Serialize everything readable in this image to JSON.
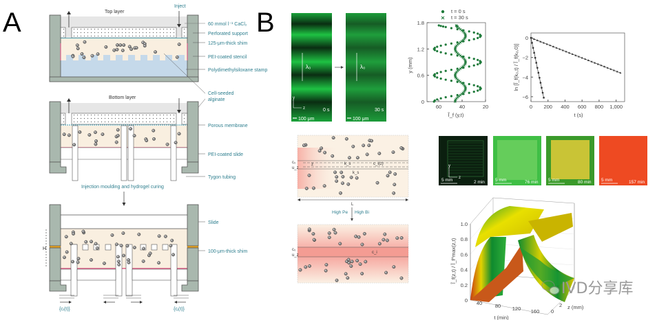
{
  "panel_a": {
    "letter": "A",
    "top_layer": "Top layer",
    "inject": "Inject",
    "bottom_layer": "Bottom layer",
    "labels": {
      "cacl2": "60 mmol l⁻¹ CaCl₂",
      "perforated_support": "Perforated support",
      "shim_125": "125-μm-thick shim",
      "pei_stencil": "PEI-coated stencil",
      "pdms_stamp": "Polydimethylsiloxane stamp",
      "cell_seeded_1": "Cell-seeded",
      "cell_seeded_2": "alginate",
      "porous_membrane": "Porous membrane",
      "pei_slide": "PEI-coated slide",
      "tygon": "Tygon tubing",
      "step": "Injection moulding and hydrogel curing",
      "slide": "Slide",
      "shim_100": "100-μm-thick shim",
      "height": "H",
      "inlet_left": "{cᵢ(t)}",
      "inlet_right": "{cⱼ(t)}"
    },
    "colors": {
      "frame": "#a9b8ae",
      "alginate": "#f9efe0",
      "stamp": "#c5d9ea",
      "shim": "#b0574a",
      "pei": "#d9467a"
    }
  },
  "panel_b": {
    "letter": "B",
    "images": [
      {
        "time": "0 s",
        "scale": "100 μm",
        "lambda": "λ₀",
        "axis_y": "y",
        "axis_z": "z"
      },
      {
        "time": "30 s",
        "scale": "100 μm",
        "lambda": "λ₀"
      }
    ],
    "schematic": {
      "arrow_label": "L",
      "high_pe": "High Pe",
      "high_bi": "High Bi",
      "c0": "c₀",
      "uz": "u_z",
      "z": "z",
      "ks": "k_s",
      "ks2": "k_s",
      "ci": "c_i(z)",
      "ci2": "c_i"
    },
    "timelapse": [
      {
        "scale": "5 mm",
        "time": "2 min",
        "color": "#0d2a14",
        "axis_y": "y",
        "axis_z": "z"
      },
      {
        "scale": "5 mm",
        "time": "76 min",
        "color": "#5fcf52"
      },
      {
        "scale": "5 mm",
        "time": "80 min",
        "color": "#c9c436"
      },
      {
        "scale": "5 mm",
        "time": "157 min",
        "color": "#ee4a22"
      }
    ],
    "watermark": "IVD分享库"
  },
  "chart_data": [
    {
      "type": "scatter",
      "xlabel": "Ĩ_f (y,t)",
      "ylabel": "y (mm)",
      "xlim": [
        70,
        20
      ],
      "ylim": [
        0,
        1.8
      ],
      "xticks": [
        "60",
        "40",
        "20"
      ],
      "yticks": [
        "0",
        "0.6",
        "1.2",
        "1.8"
      ],
      "legend_position": "top",
      "series": [
        {
          "name": "t = 0 s",
          "marker": "circle",
          "color": "#1e7a3a",
          "y": [
            0,
            0.1,
            0.2,
            0.3,
            0.4,
            0.5,
            0.6,
            0.7,
            0.8,
            0.9,
            1.0,
            1.1,
            1.2,
            1.3,
            1.4,
            1.5,
            1.6,
            1.7,
            1.75
          ],
          "x": [
            64,
            54,
            34,
            24,
            34,
            54,
            64,
            54,
            34,
            24,
            34,
            54,
            64,
            54,
            34,
            24,
            34,
            54,
            60
          ]
        },
        {
          "name": "t = 30 s",
          "marker": "x",
          "color": "#1e7a3a",
          "y": [
            0,
            0.1,
            0.2,
            0.3,
            0.4,
            0.5,
            0.6,
            0.7,
            0.8,
            0.9,
            1.0,
            1.1,
            1.2,
            1.3,
            1.4,
            1.5,
            1.6,
            1.7,
            1.75
          ],
          "x": [
            46,
            43.5,
            39.5,
            37,
            39.5,
            43.5,
            46,
            43.5,
            39.5,
            37,
            39.5,
            43.5,
            46,
            43.5,
            39.5,
            37,
            39.5,
            43.5,
            45
          ]
        }
      ]
    },
    {
      "type": "line",
      "xlabel": "t (s)",
      "ylabel": "ln [Ĩ_f(k₀,t) / Ĩ_f(k₀,0)]",
      "xlim": [
        0,
        1100
      ],
      "ylim": [
        -6.5,
        0.5
      ],
      "xticks": [
        "0",
        "200",
        "400",
        "600",
        "800",
        "1,000"
      ],
      "yticks": [
        "0",
        "−2",
        "−4",
        "−6"
      ],
      "series": [
        {
          "marker": "square",
          "color": "#333333",
          "x": [
            0,
            25,
            50,
            75,
            100,
            125,
            150
          ],
          "y": [
            0,
            -1.0,
            -2.0,
            -3.1,
            -4.1,
            -5.1,
            -6.1
          ]
        },
        {
          "marker": "triangle",
          "color": "#333333",
          "x": [
            0,
            100,
            200,
            300,
            400,
            500,
            600,
            700,
            800,
            900,
            1000,
            1060
          ],
          "y": [
            0,
            -0.34,
            -0.68,
            -1.02,
            -1.36,
            -1.7,
            -2.04,
            -2.38,
            -2.72,
            -3.06,
            -3.4,
            -3.6
          ]
        }
      ]
    },
    {
      "type": "surface",
      "xlabel": "t (min)",
      "zlabel": "z (mm)",
      "ylabel": "Ĩ_f(z,t) / Ĩ_f^max(z,t)",
      "xticks": [
        "40",
        "80",
        "120",
        "160"
      ],
      "zticks": [
        "0",
        "2"
      ],
      "yticks": [
        "0",
        "0.2",
        "0.4",
        "0.6",
        "0.8",
        "1.0"
      ],
      "ylim": [
        0,
        1.0
      ],
      "colormap": [
        "#0f8a2e",
        "#f0e400",
        "#d43a12"
      ]
    }
  ]
}
